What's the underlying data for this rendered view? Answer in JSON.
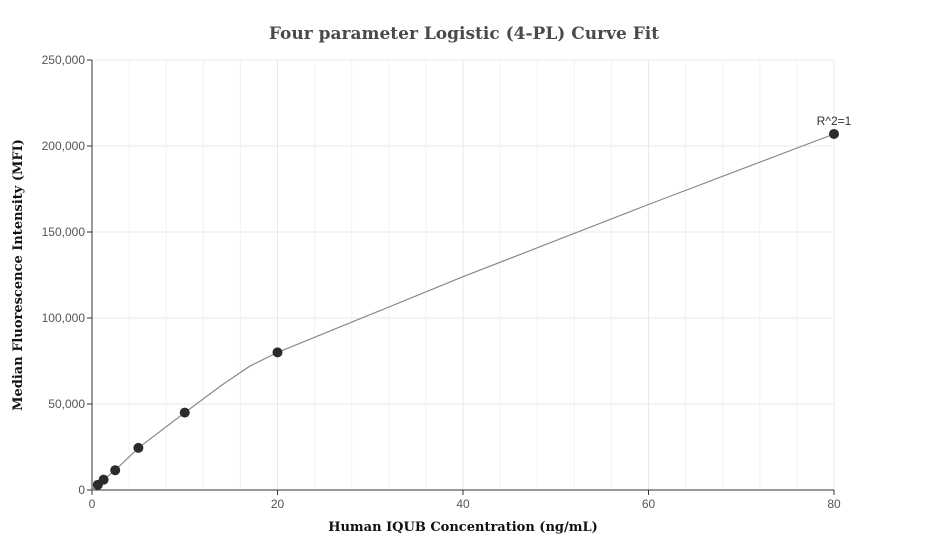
{
  "chart_data": {
    "type": "scatter",
    "title": "Four parameter Logistic (4-PL) Curve Fit",
    "xlabel": "Human IQUB Concentration (ng/mL)",
    "ylabel": "Median Fluorescence Intensity (MFI)",
    "xlim": [
      0,
      80
    ],
    "ylim": [
      0,
      250000
    ],
    "x_ticks": [
      0,
      20,
      40,
      60,
      80
    ],
    "x_tick_labels": [
      "0",
      "20",
      "40",
      "60",
      "80"
    ],
    "y_ticks": [
      0,
      50000,
      100000,
      150000,
      200000,
      250000
    ],
    "y_tick_labels": [
      "0",
      "50,000",
      "100,000",
      "150,000",
      "200,000",
      "250,000"
    ],
    "grid": true,
    "points": [
      {
        "x": 0.625,
        "y": 3000
      },
      {
        "x": 1.25,
        "y": 6000
      },
      {
        "x": 2.5,
        "y": 11500
      },
      {
        "x": 5,
        "y": 24500
      },
      {
        "x": 10,
        "y": 45000
      },
      {
        "x": 20,
        "y": 80000
      },
      {
        "x": 80,
        "y": 207000
      }
    ],
    "fit_curve": [
      {
        "x": 0,
        "y": 0
      },
      {
        "x": 0.625,
        "y": 3000
      },
      {
        "x": 1.25,
        "y": 6000
      },
      {
        "x": 2.5,
        "y": 11500
      },
      {
        "x": 5,
        "y": 24500
      },
      {
        "x": 10,
        "y": 45000
      },
      {
        "x": 14,
        "y": 61000
      },
      {
        "x": 17,
        "y": 72000
      },
      {
        "x": 20,
        "y": 80000
      },
      {
        "x": 30,
        "y": 102000
      },
      {
        "x": 40,
        "y": 124000
      },
      {
        "x": 50,
        "y": 145000
      },
      {
        "x": 60,
        "y": 166000
      },
      {
        "x": 70,
        "y": 186500
      },
      {
        "x": 80,
        "y": 207000
      }
    ],
    "annotations": [
      {
        "text": "R^2=1",
        "x": 80,
        "y": 207000
      }
    ],
    "colors": {
      "point": "#2b2b2b",
      "curve": "#8a8a8a",
      "grid": "#e8e8ee",
      "axis": "#333333"
    }
  }
}
